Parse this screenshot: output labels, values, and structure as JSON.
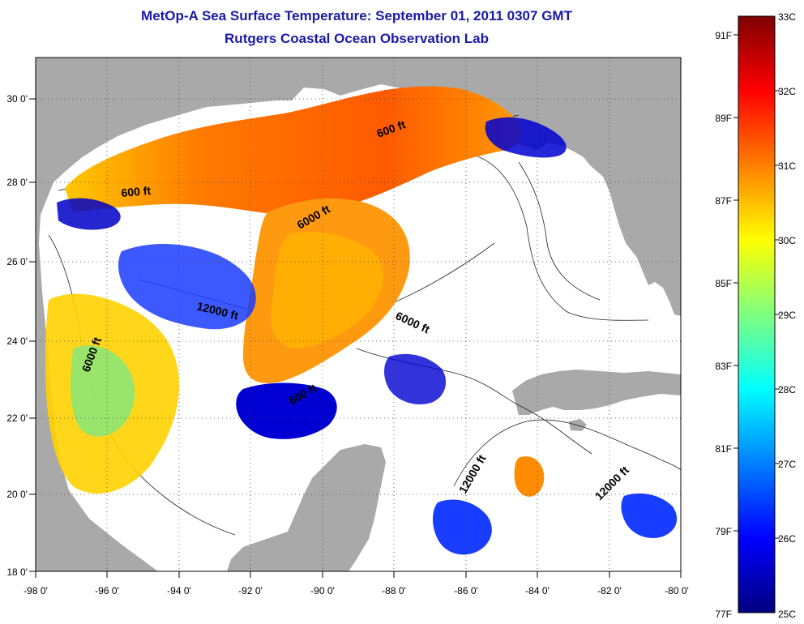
{
  "title": "MetOp-A Sea Surface Temperature:  September 01, 2011 0307 GMT",
  "subtitle": "Rutgers Coastal Ocean Observation Lab",
  "map": {
    "lon_range": [
      -98,
      -80
    ],
    "lat_range": [
      18,
      31
    ],
    "x_tick_labels": [
      "-98 0'",
      "-96 0'",
      "-94 0'",
      "-92 0'",
      "-90 0'",
      "-88 0'",
      "-86 0'",
      "-84 0'",
      "-82 0'",
      "-80 0'"
    ],
    "y_tick_labels": [
      "18 0'",
      "20 0'",
      "22 0'",
      "24 0'",
      "26 0'",
      "28 0'",
      "30 0'"
    ],
    "land_color": "#a9a9a9",
    "cloud_color": "#ffffff",
    "contour_labels": [
      "600 ft",
      "600 ft",
      "6000 ft",
      "12000 ft",
      "6000 ft",
      "6000 ft",
      "600 ft",
      "12000 ft",
      "12000 ft"
    ]
  },
  "colorbar": {
    "celsius_labels": [
      "33C",
      "32C",
      "31C",
      "30C",
      "29C",
      "28C",
      "27C",
      "26C",
      "25C"
    ],
    "fahrenheit_labels": [
      "91F",
      "89F",
      "87F",
      "85F",
      "83F",
      "81F",
      "79F",
      "77F"
    ],
    "range_c": [
      25,
      33
    ],
    "colormap": [
      "#00007f",
      "#0000ff",
      "#007fff",
      "#00ffff",
      "#7fff7f",
      "#ffff00",
      "#ff7f00",
      "#ff0000",
      "#7f0000"
    ]
  }
}
